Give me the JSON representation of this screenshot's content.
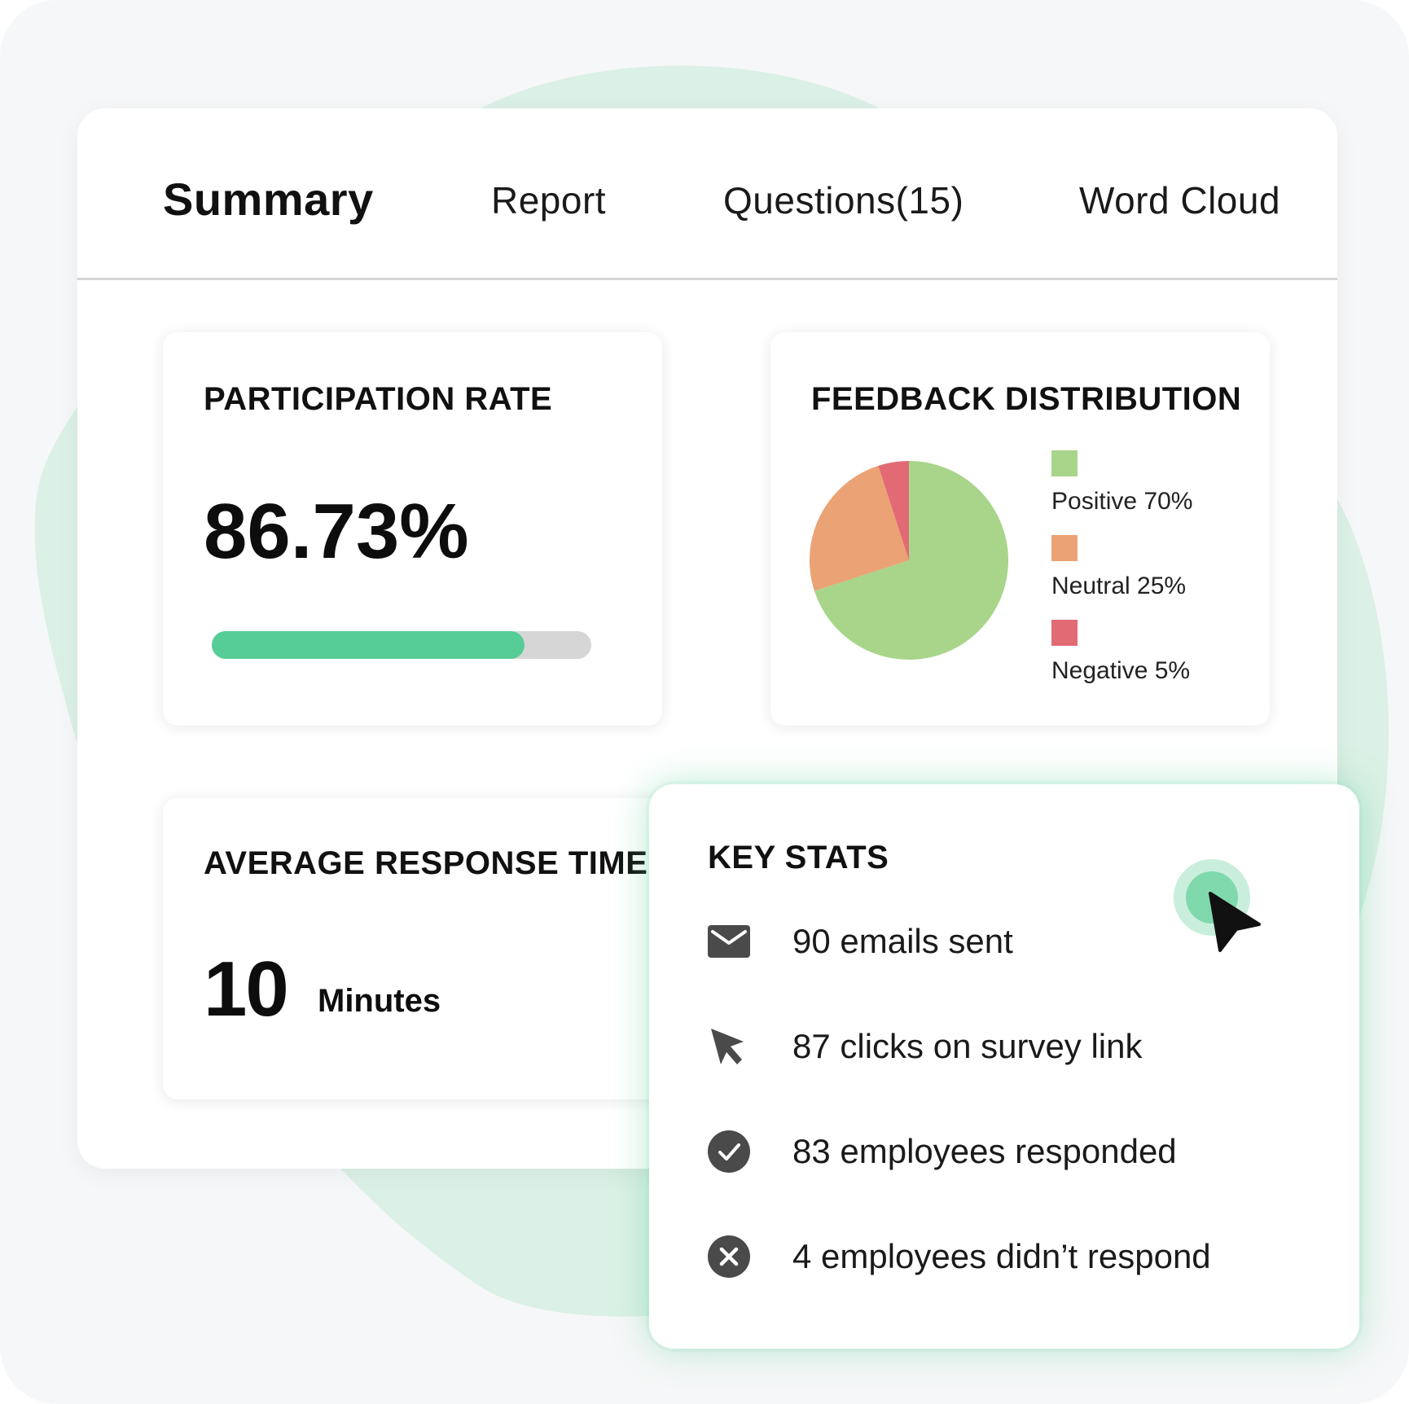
{
  "tabs": [
    {
      "label": "Summary",
      "active": true
    },
    {
      "label": "Report",
      "active": false
    },
    {
      "label": "Questions(15)",
      "active": false
    },
    {
      "label": "Word Cloud",
      "active": false
    }
  ],
  "participation": {
    "title": "PARTICIPATION RATE",
    "value": "86.73%",
    "progress_percent": 86.73,
    "fill_color": "#56cd96",
    "track_color": "#d6d6d6"
  },
  "feedback": {
    "title": "FEEDBACK DISTRIBUTION",
    "legend": [
      {
        "label": "Positive 70%",
        "color": "#a8d58a"
      },
      {
        "label": "Neutral 25%",
        "color": "#eba275"
      },
      {
        "label": "Negative 5%",
        "color": "#e26a75"
      }
    ]
  },
  "chart_data": {
    "type": "pie",
    "categories": [
      "Positive",
      "Neutral",
      "Negative"
    ],
    "values": [
      70,
      25,
      5
    ],
    "colors": [
      "#a8d58a",
      "#eba275",
      "#e26a75"
    ],
    "title": "FEEDBACK DISTRIBUTION",
    "legend_position": "right"
  },
  "response_time": {
    "title": "AVERAGE RESPONSE TIME",
    "value": "10",
    "unit": "Minutes"
  },
  "key_stats": {
    "title": "KEY STATS",
    "items": [
      {
        "icon": "envelope-icon",
        "text": "90 emails sent"
      },
      {
        "icon": "cursor-icon",
        "text": "87 clicks on survey link"
      },
      {
        "icon": "check-circle-icon",
        "text": "83 employees responded"
      },
      {
        "icon": "x-circle-icon",
        "text": "4 employees didn’t respond"
      }
    ]
  },
  "colors": {
    "accent_green": "#56cd96",
    "blob_green": "#dbf0e6",
    "icon_gray": "#4a4a4a"
  }
}
